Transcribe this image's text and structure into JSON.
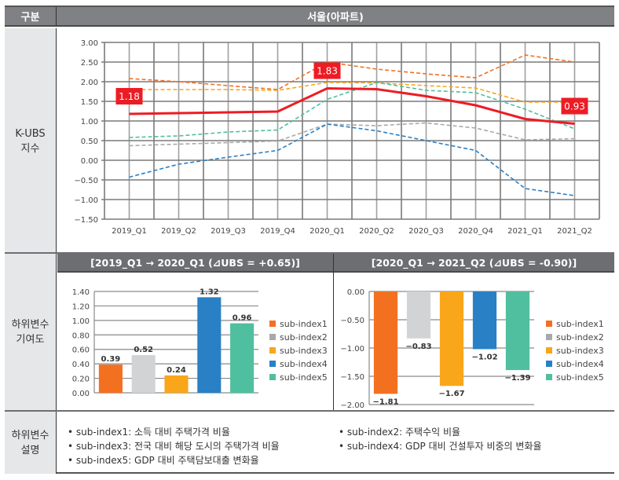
{
  "header": {
    "col_label": "구분",
    "title": "서울(아파트)"
  },
  "rows": {
    "index_label": "K-UBS\n지수",
    "contrib_label": "하위변수\n기여도",
    "desc_label": "하위변수\n설명"
  },
  "colors": {
    "kubs": "#ed1c24",
    "sub1": "#f37021",
    "sub2": "#a7a9ac",
    "sub3": "#f9a61a",
    "sub4": "#2a80c5",
    "sub5": "#4fbfa0",
    "sub2_bar": "#d1d3d4"
  },
  "chart_data": [
    {
      "type": "line",
      "title": "서울(아파트)",
      "xlabel": "",
      "ylabel": "K-UBS 지수",
      "ylim": [
        -1.5,
        3.0
      ],
      "yticks": [
        "3.00",
        "2.50",
        "2.00",
        "1.50",
        "1.00",
        "0.50",
        "0.00",
        "-0.50",
        "-1.00",
        "-1.50"
      ],
      "grid": true,
      "x": [
        "2019_Q1",
        "2019_Q2",
        "2019_Q3",
        "2019_Q4",
        "2020_Q1",
        "2020_Q2",
        "2020_Q3",
        "2020_Q4",
        "2021_Q1",
        "2021_Q2"
      ],
      "series": [
        {
          "name": "sub-index1",
          "style": "dashed",
          "values": [
            2.08,
            2.0,
            1.9,
            1.8,
            2.5,
            2.32,
            2.2,
            2.1,
            2.68,
            2.5
          ]
        },
        {
          "name": "sub-index3",
          "style": "dashed",
          "values": [
            1.8,
            1.8,
            1.8,
            1.78,
            1.98,
            1.97,
            1.9,
            1.84,
            1.48,
            1.48
          ]
        },
        {
          "name": "sub-index5",
          "style": "dashed",
          "values": [
            0.58,
            0.62,
            0.72,
            0.77,
            1.55,
            1.98,
            1.78,
            1.72,
            1.3,
            0.8
          ]
        },
        {
          "name": "sub-index2",
          "style": "dashed",
          "values": [
            0.37,
            0.41,
            0.45,
            0.49,
            0.92,
            0.88,
            0.95,
            0.82,
            0.52,
            0.55
          ]
        },
        {
          "name": "sub-index4",
          "style": "dashed",
          "values": [
            -0.43,
            -0.1,
            0.08,
            0.25,
            0.92,
            0.75,
            0.5,
            0.25,
            -0.72,
            -0.9
          ]
        },
        {
          "name": "K-UBS",
          "style": "solid",
          "values": [
            1.18,
            1.2,
            1.22,
            1.24,
            1.83,
            1.81,
            1.63,
            1.4,
            1.05,
            0.93
          ]
        }
      ],
      "annotations": [
        {
          "x": "2019_Q1",
          "text": "1.18"
        },
        {
          "x": "2020_Q1",
          "text": "1.83"
        },
        {
          "x": "2021_Q2",
          "text": "0.93"
        }
      ]
    },
    {
      "type": "bar",
      "title": "[2019_Q1 → 2020_Q1 (⊿UBS = +0.65)]",
      "categories": [
        "sub-index1",
        "sub-index2",
        "sub-index3",
        "sub-index4",
        "sub-index5"
      ],
      "values": [
        0.39,
        0.52,
        0.24,
        1.32,
        0.96
      ],
      "labels": [
        "0.39",
        "0.52",
        "0.24",
        "1.32",
        "0.96"
      ],
      "ylim": [
        0.0,
        1.4
      ],
      "yticks": [
        "1.40",
        "1.20",
        "1.00",
        "0.80",
        "0.60",
        "0.40",
        "0.20",
        "0.00"
      ],
      "legend": "right",
      "grid": true
    },
    {
      "type": "bar",
      "title": "[2020_Q1 → 2021_Q2 (⊿UBS = -0.90)]",
      "categories": [
        "sub-index1",
        "sub-index2",
        "sub-index3",
        "sub-index4",
        "sub-index5"
      ],
      "values": [
        -1.81,
        -0.83,
        -1.67,
        -1.02,
        -1.39
      ],
      "labels": [
        "−1.81",
        "−0.83",
        "−1.67",
        "−1.02",
        "−1.39"
      ],
      "ylim": [
        -2.0,
        0.0
      ],
      "yticks": [
        "0.00",
        "-0.50",
        "-1.00",
        "-1.50",
        "-2.00"
      ],
      "legend": "right",
      "grid": true
    }
  ],
  "descriptions": {
    "left": [
      "• sub-index1: 소득 대비 주택가격 비율",
      "• sub-index3: 전국 대비 해당 도시의 주택가격 비율",
      "• sub-index5: GDP 대비 주택담보대출 변화율"
    ],
    "right": [
      "• sub-index2: 주택수익 비율",
      "• sub-index4: GDP 대비 건설투자 비중의 변화율"
    ]
  }
}
